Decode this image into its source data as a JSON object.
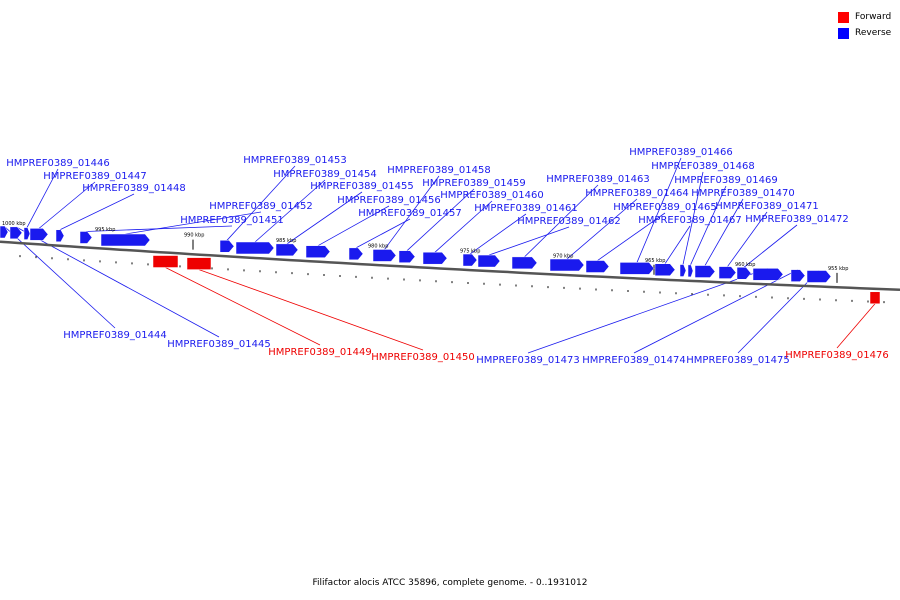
{
  "caption": "Filifactor alocis ATCC 35896, complete genome. - 0..1931012",
  "legend": [
    {
      "label": "Forward",
      "color": "#ff0000"
    },
    {
      "label": "Reverse",
      "color": "#0000ff"
    }
  ],
  "colors": {
    "forward": "#ee0000",
    "reverse": "#1a1aee",
    "backbone": "#777777"
  },
  "ticks": [
    "1000 kbp",
    "995 kbp",
    "990 kbp",
    "985 kbp",
    "980 kbp",
    "975 kbp",
    "970 kbp",
    "965 kbp",
    "960 kbp",
    "955 kbp"
  ],
  "genes": [
    {
      "id": "HMPREF0389_01444",
      "strand": "reverse"
    },
    {
      "id": "HMPREF0389_01445",
      "strand": "reverse"
    },
    {
      "id": "HMPREF0389_01446",
      "strand": "reverse"
    },
    {
      "id": "HMPREF0389_01447",
      "strand": "reverse"
    },
    {
      "id": "HMPREF0389_01448",
      "strand": "reverse"
    },
    {
      "id": "HMPREF0389_01449",
      "strand": "forward"
    },
    {
      "id": "HMPREF0389_01450",
      "strand": "forward"
    },
    {
      "id": "HMPREF0389_01451",
      "strand": "reverse"
    },
    {
      "id": "HMPREF0389_01452",
      "strand": "reverse"
    },
    {
      "id": "HMPREF0389_01453",
      "strand": "reverse"
    },
    {
      "id": "HMPREF0389_01454",
      "strand": "reverse"
    },
    {
      "id": "HMPREF0389_01455",
      "strand": "reverse"
    },
    {
      "id": "HMPREF0389_01456",
      "strand": "reverse"
    },
    {
      "id": "HMPREF0389_01457",
      "strand": "reverse"
    },
    {
      "id": "HMPREF0389_01458",
      "strand": "reverse"
    },
    {
      "id": "HMPREF0389_01459",
      "strand": "reverse"
    },
    {
      "id": "HMPREF0389_01460",
      "strand": "reverse"
    },
    {
      "id": "HMPREF0389_01461",
      "strand": "reverse"
    },
    {
      "id": "HMPREF0389_01462",
      "strand": "reverse"
    },
    {
      "id": "HMPREF0389_01463",
      "strand": "reverse"
    },
    {
      "id": "HMPREF0389_01464",
      "strand": "reverse"
    },
    {
      "id": "HMPREF0389_01465",
      "strand": "reverse"
    },
    {
      "id": "HMPREF0389_01466",
      "strand": "reverse"
    },
    {
      "id": "HMPREF0389_01467",
      "strand": "reverse"
    },
    {
      "id": "HMPREF0389_01468",
      "strand": "reverse"
    },
    {
      "id": "HMPREF0389_01469",
      "strand": "reverse"
    },
    {
      "id": "HMPREF0389_01470",
      "strand": "reverse"
    },
    {
      "id": "HMPREF0389_01471",
      "strand": "reverse"
    },
    {
      "id": "HMPREF0389_01472",
      "strand": "reverse"
    },
    {
      "id": "HMPREF0389_01473",
      "strand": "reverse"
    },
    {
      "id": "HMPREF0389_01474",
      "strand": "reverse"
    },
    {
      "id": "HMPREF0389_01475",
      "strand": "reverse"
    },
    {
      "id": "HMPREF0389_01476",
      "strand": "forward"
    }
  ]
}
